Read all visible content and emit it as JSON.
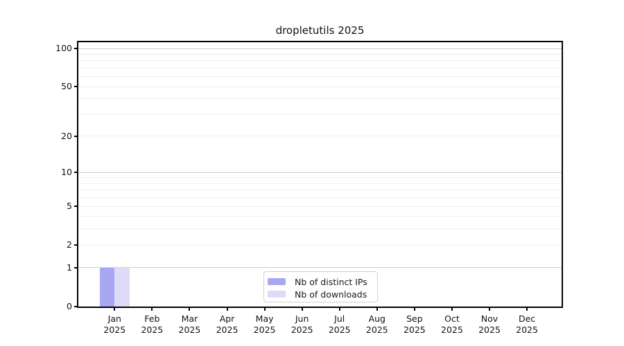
{
  "chart_data": {
    "type": "bar",
    "title": "dropletutils 2025",
    "xlabel": "",
    "ylabel": "",
    "categories": [
      "Jan 2025",
      "Feb 2025",
      "Mar 2025",
      "Apr 2025",
      "May 2025",
      "Jun 2025",
      "Jul 2025",
      "Aug 2025",
      "Sep 2025",
      "Oct 2025",
      "Nov 2025",
      "Dec 2025"
    ],
    "series": [
      {
        "name": "Nb of distinct IPs",
        "color": "#a7a7f2",
        "values": [
          1,
          0,
          0,
          0,
          0,
          0,
          0,
          0,
          0,
          0,
          0,
          0
        ]
      },
      {
        "name": "Nb of downloads",
        "color": "#dcdcf8",
        "values": [
          1,
          0,
          0,
          0,
          0,
          0,
          0,
          0,
          0,
          0,
          0,
          0
        ]
      }
    ],
    "yscale": "log1p",
    "ylim": [
      0,
      112
    ],
    "yticks": [
      0,
      1,
      2,
      5,
      10,
      20,
      50,
      100
    ],
    "grid": {
      "minor_values": [
        2,
        3,
        4,
        5,
        6,
        7,
        8,
        9,
        20,
        30,
        40,
        50,
        60,
        70,
        80,
        90
      ],
      "major_values": [
        1,
        10,
        100
      ],
      "minor_color": "#efefef",
      "major_color": "#cfcfcf"
    },
    "legend_position": "bottom-center-inside",
    "background": "#ffffff"
  }
}
